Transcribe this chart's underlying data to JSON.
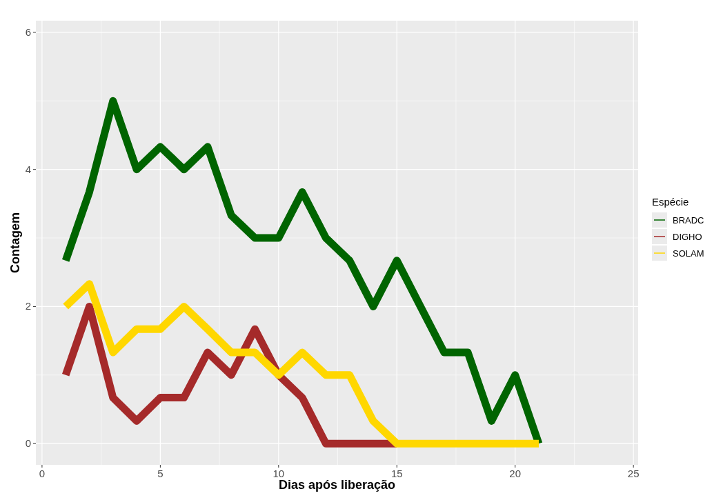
{
  "chart_data": {
    "type": "line",
    "xlabel": "Dias após liberação",
    "ylabel": "Contagem",
    "legend_title": "Espécie",
    "legend": "right",
    "grid": true,
    "xlim": [
      -0.26,
      25.2
    ],
    "xticks": [
      0,
      5,
      10,
      15,
      20,
      25
    ],
    "ylim": [
      -0.31,
      6.17
    ],
    "yticks": [
      0,
      2,
      4,
      6
    ],
    "series": [
      {
        "name": "BRADC",
        "color": "#006400",
        "x": [
          1,
          2,
          3,
          4,
          5,
          6,
          7,
          8,
          9,
          10,
          11,
          12,
          13,
          14,
          15,
          16,
          17,
          18,
          19,
          20,
          21
        ],
        "values": [
          2.67,
          3.67,
          5,
          4,
          4.33,
          4,
          4.33,
          3.33,
          3,
          3,
          3.67,
          3,
          2.67,
          2,
          2.67,
          2,
          1.33,
          1.33,
          0.33,
          1,
          0
        ]
      },
      {
        "name": "DIGHO",
        "color": "#a52a2a",
        "x": [
          1,
          2,
          3,
          4,
          5,
          6,
          7,
          8,
          9,
          10,
          11,
          12,
          13,
          14,
          15
        ],
        "values": [
          1,
          2,
          0.67,
          0.33,
          0.67,
          0.67,
          1.33,
          1,
          1.67,
          1,
          0.67,
          0,
          0,
          0,
          0
        ]
      },
      {
        "name": "SOLAM",
        "color": "#ffd700",
        "x": [
          1,
          2,
          3,
          4,
          5,
          6,
          7,
          8,
          9,
          10,
          11,
          12,
          13,
          14,
          15,
          16,
          17,
          18,
          19,
          20,
          21
        ],
        "values": [
          2,
          2.33,
          1.33,
          1.67,
          1.67,
          2,
          1.67,
          1.33,
          1.33,
          1,
          1.33,
          1,
          1,
          0.33,
          0,
          0,
          0,
          0,
          0,
          0,
          0
        ]
      }
    ]
  }
}
